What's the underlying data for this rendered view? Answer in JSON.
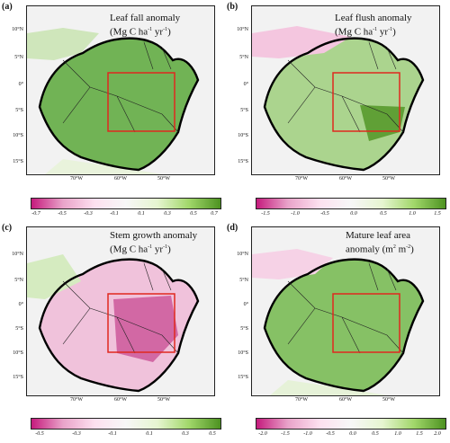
{
  "panels": [
    {
      "label": "(a)",
      "title_line1": "Leaf fall anomaly",
      "title_line2": "(Mg C ha",
      "title_sup1": "-1",
      "title_mid": " yr",
      "title_sup2": "-1",
      "title_end": ")",
      "colormap": "pink-green",
      "colorbar_ticks": [
        "-0.7",
        "-0.5",
        "-0.3",
        "-0.1",
        "0.1",
        "0.3",
        "0.5",
        "0.7"
      ],
      "dominant_color": "#5aa83a"
    },
    {
      "label": "(b)",
      "title_line1": "Leaf flush anomaly",
      "title_line2": "(Mg C ha",
      "title_sup1": "-1",
      "title_mid": " yr",
      "title_sup2": "-1",
      "title_end": ")",
      "colormap": "pink-green",
      "colorbar_ticks": [
        "-1.5",
        "-1.0",
        "-0.5",
        "0.0",
        "0.5",
        "1.0",
        "1.5"
      ],
      "dominant_color": "#8fc96a"
    },
    {
      "label": "(c)",
      "title_line1": "Stem growth anomaly",
      "title_line2": "(Mg C ha",
      "title_sup1": "-1",
      "title_mid": " yr",
      "title_sup2": "-1",
      "title_end": ")",
      "colormap": "pink-green",
      "colorbar_ticks": [
        "-0.5",
        "-0.3",
        "-0.1",
        "0.1",
        "0.3",
        "0.5"
      ],
      "dominant_color": "#d06aa4"
    },
    {
      "label": "(d)",
      "title_line1": "Mature leaf area",
      "title_line2": "anomaly (m",
      "title_sup1": "2",
      "title_mid": " m",
      "title_sup2": "-2",
      "title_end": ")",
      "colormap": "pink-green",
      "colorbar_ticks": [
        "-2.0",
        "-1.5",
        "-1.0",
        "-0.5",
        "0.0",
        "0.5",
        "1.0",
        "1.5",
        "2.0"
      ],
      "dominant_color": "#73b84c"
    }
  ],
  "lat_ticks": [
    "10°N",
    "5°N",
    "0°",
    "5°S",
    "10°S",
    "15°S"
  ],
  "lon_ticks": [
    "70°W",
    "60°W",
    "50°W"
  ],
  "colors": {
    "box": "#e0281e",
    "outline": "#000000",
    "land_bg": "#f2f2f2"
  }
}
